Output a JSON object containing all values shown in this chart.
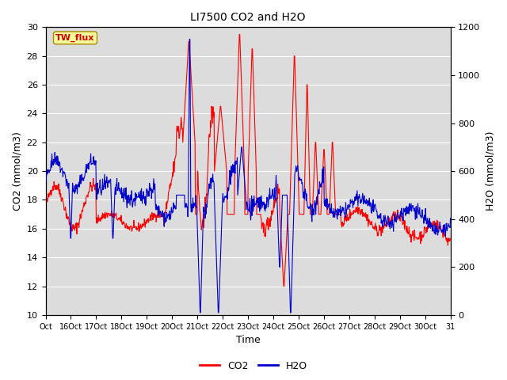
{
  "title": "LI7500 CO2 and H2O",
  "xlabel": "Time",
  "ylabel_left": "CO2 (mmol/m3)",
  "ylabel_right": "H2O (mmol/m3)",
  "annotation": "TW_flux",
  "co2_ylim": [
    10,
    30
  ],
  "h2o_ylim": [
    0,
    1200
  ],
  "co2_yticks": [
    10,
    12,
    14,
    16,
    18,
    20,
    22,
    24,
    26,
    28,
    30
  ],
  "h2o_yticks": [
    0,
    200,
    400,
    600,
    800,
    1000,
    1200
  ],
  "xtick_labels": [
    "Oct",
    "16Oct",
    "17Oct",
    "18Oct",
    "19Oct",
    "20Oct",
    "21Oct",
    "22Oct",
    "23Oct",
    "24Oct",
    "25Oct",
    "26Oct",
    "27Oct",
    "28Oct",
    "29Oct",
    "30Oct",
    "31"
  ],
  "plot_bg_color": "#dcdcdc",
  "co2_color": "#ff0000",
  "h2o_color": "#0000cc",
  "legend_co2": "CO2",
  "legend_h2o": "H2O",
  "annotation_bg": "#ffff99",
  "annotation_border": "#aa8800",
  "annotation_text_color": "#cc0000",
  "grid_color": "#ffffff",
  "title_fontsize": 10,
  "axis_label_fontsize": 9,
  "tick_fontsize": 8
}
